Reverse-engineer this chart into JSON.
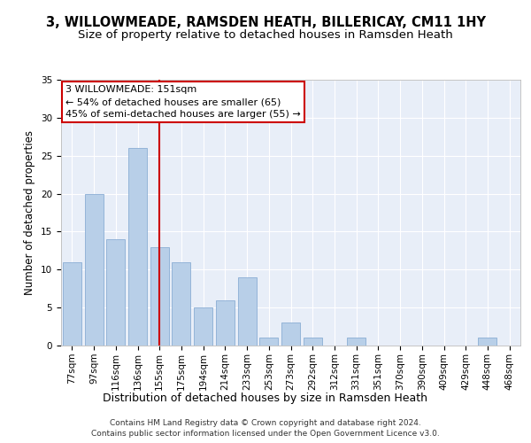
{
  "title1": "3, WILLOWMEADE, RAMSDEN HEATH, BILLERICAY, CM11 1HY",
  "title2": "Size of property relative to detached houses in Ramsden Heath",
  "xlabel": "Distribution of detached houses by size in Ramsden Heath",
  "ylabel": "Number of detached properties",
  "categories": [
    "77sqm",
    "97sqm",
    "116sqm",
    "136sqm",
    "155sqm",
    "175sqm",
    "194sqm",
    "214sqm",
    "233sqm",
    "253sqm",
    "273sqm",
    "292sqm",
    "312sqm",
    "331sqm",
    "351sqm",
    "370sqm",
    "390sqm",
    "409sqm",
    "429sqm",
    "448sqm",
    "468sqm"
  ],
  "values": [
    11,
    20,
    14,
    26,
    13,
    11,
    5,
    6,
    9,
    1,
    3,
    1,
    0,
    1,
    0,
    0,
    0,
    0,
    0,
    1,
    0
  ],
  "bar_color": "#b8cfe8",
  "bar_edge_color": "#8aadd4",
  "red_line_index": 4,
  "ylim": [
    0,
    35
  ],
  "yticks": [
    0,
    5,
    10,
    15,
    20,
    25,
    30,
    35
  ],
  "annotation_line1": "3 WILLOWMEADE: 151sqm",
  "annotation_line2": "← 54% of detached houses are smaller (65)",
  "annotation_line3": "45% of semi-detached houses are larger (55) →",
  "annotation_box_color": "#ffffff",
  "annotation_box_edge": "#cc0000",
  "footnote1": "Contains HM Land Registry data © Crown copyright and database right 2024.",
  "footnote2": "Contains public sector information licensed under the Open Government Licence v3.0.",
  "chart_bg_color": "#e8eef8",
  "fig_bg_color": "#ffffff",
  "grid_color": "#ffffff",
  "title1_fontsize": 10.5,
  "title2_fontsize": 9.5,
  "xlabel_fontsize": 9,
  "ylabel_fontsize": 8.5,
  "tick_fontsize": 7.5,
  "annotation_fontsize": 8,
  "footnote_fontsize": 6.5
}
